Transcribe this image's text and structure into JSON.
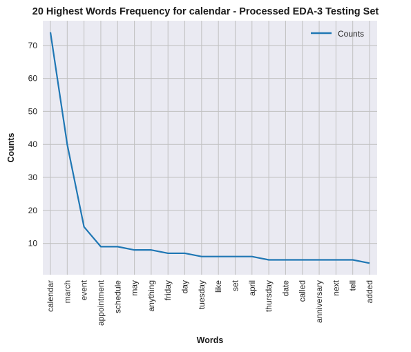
{
  "chart_data": {
    "type": "line",
    "title": "20 Highest Words Frequency for calendar - Processed EDA-3 Testing Set",
    "xlabel": "Words",
    "ylabel": "Counts",
    "categories": [
      "calendar",
      "march",
      "event",
      "appointment",
      "schedule",
      "may",
      "anything",
      "friday",
      "day",
      "tuesday",
      "like",
      "set",
      "april",
      "thursday",
      "date",
      "called",
      "anniversary",
      "next",
      "tell",
      "added"
    ],
    "series": [
      {
        "name": "Counts",
        "values": [
          74,
          40,
          15,
          9,
          9,
          8,
          8,
          7,
          7,
          6,
          6,
          6,
          6,
          5,
          5,
          5,
          5,
          5,
          5,
          4
        ],
        "color": "#1f77b4"
      }
    ],
    "ylim": [
      0.5,
      77.5
    ],
    "yticks": [
      10,
      20,
      30,
      40,
      50,
      60,
      70
    ],
    "grid": true,
    "legend": "top-right",
    "background": "#eaeaf2",
    "grid_color": "#c0c0c0"
  }
}
